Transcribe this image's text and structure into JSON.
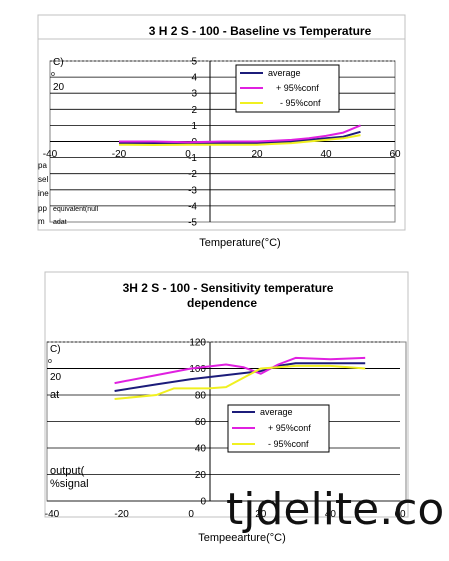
{
  "chart_data": [
    {
      "type": "line",
      "title": "3 H 2 S - 100 - Baseline  vs  Temperature",
      "xlabel": "Temperature(°C)",
      "ylabel_fragments": [
        "C)",
        "o",
        "20",
        "pa",
        "sel",
        "ine",
        "pp",
        "m",
        "equivalent(null",
        "adat"
      ],
      "xlim": [
        -40,
        60
      ],
      "ylim": [
        -5,
        5
      ],
      "x_ticks": [
        "-40",
        "-20",
        "0",
        "20",
        "40",
        "60"
      ],
      "y_ticks": [
        "5",
        "4",
        "3",
        "2",
        "1",
        "0",
        "-1",
        "-2",
        "-3",
        "-4",
        "-5"
      ],
      "legend_position": "top-right",
      "legend": [
        "average",
        "+ 95%conf",
        "- 95%conf"
      ],
      "colors": [
        "#1c1c7a",
        "#e020e0",
        "#f0f020"
      ],
      "series": [
        {
          "name": "average",
          "x": [
            -20,
            -10,
            0,
            10,
            20,
            25,
            30,
            35,
            40,
            45,
            50
          ],
          "y": [
            -0.1,
            -0.12,
            -0.15,
            -0.12,
            -0.1,
            -0.05,
            0,
            0.1,
            0.2,
            0.3,
            0.6
          ]
        },
        {
          "name": "+ 95%conf",
          "x": [
            -20,
            -10,
            0,
            10,
            20,
            25,
            30,
            35,
            40,
            45,
            50
          ],
          "y": [
            0,
            0,
            -0.05,
            0,
            0,
            0.05,
            0.1,
            0.2,
            0.35,
            0.55,
            1.0
          ]
        },
        {
          "name": "- 95%conf",
          "x": [
            -20,
            -10,
            0,
            10,
            20,
            25,
            30,
            35,
            40,
            45,
            50
          ],
          "y": [
            -0.2,
            -0.22,
            -0.2,
            -0.2,
            -0.2,
            -0.15,
            -0.1,
            0,
            0.1,
            0.2,
            0.4
          ]
        }
      ]
    },
    {
      "type": "line",
      "title_line1": "3H 2 S - 100 - Sensitivity  temperature",
      "title_line2": "dependence",
      "xlabel": "Tempeearture(°C)",
      "ylabel_fragments": [
        "C)",
        "o",
        "20",
        "at",
        "output(",
        "%signal"
      ],
      "xlim": [
        -40,
        60
      ],
      "ylim": [
        0,
        120
      ],
      "x_ticks": [
        "-40",
        "-20",
        "0",
        "20",
        "40",
        "60"
      ],
      "y_ticks": [
        "120",
        "100",
        "80",
        "60",
        "40",
        "20",
        "0"
      ],
      "legend_position": "center-right",
      "legend": [
        "average",
        "+ 95%conf",
        "- 95%conf"
      ],
      "colors": [
        "#1c1c7a",
        "#e020e0",
        "#f0f020"
      ],
      "series": [
        {
          "name": "average",
          "x": [
            -22,
            -10,
            0,
            10,
            20,
            25,
            30,
            40,
            50
          ],
          "y": [
            83,
            88,
            92,
            95,
            98,
            102,
            104,
            104,
            104
          ]
        },
        {
          "name": "+ 95%conf",
          "x": [
            -22,
            -10,
            0,
            10,
            15,
            20,
            25,
            30,
            40,
            50
          ],
          "y": [
            89,
            95,
            100,
            103,
            101,
            96,
            103,
            108,
            107,
            108
          ]
        },
        {
          "name": "- 95%conf",
          "x": [
            -22,
            -10,
            -5,
            0,
            5,
            10,
            20,
            25,
            30,
            40,
            50
          ],
          "y": [
            77,
            80,
            85,
            85,
            85,
            86,
            100,
            101,
            102,
            102,
            100
          ]
        }
      ]
    }
  ],
  "watermark": "tjdelite.co"
}
